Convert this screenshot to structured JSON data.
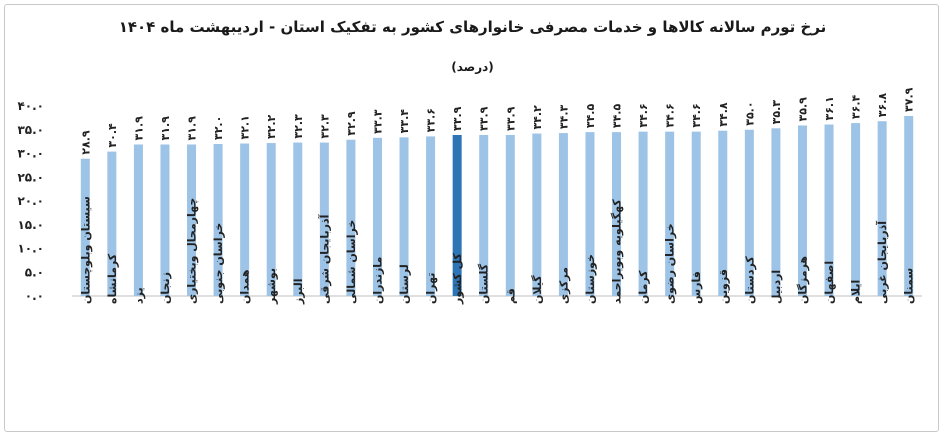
{
  "chart_data": {
    "type": "bar",
    "title": "نرخ تورم سالانه کالاها و خدمات مصرفی خانوارهای کشور به تفکیک استان - اردیبهشت ماه ۱۴۰۴",
    "subtitle": "(درصد)",
    "xlabel": "",
    "ylabel": "",
    "ylim": [
      0,
      40
    ],
    "yticks": [
      "۰.۰",
      "۵.۰",
      "۱۰.۰",
      "۱۵.۰",
      "۲۰.۰",
      "۲۵.۰",
      "۳۰.۰",
      "۳۵.۰",
      "۴۰.۰"
    ],
    "ytick_values": [
      0,
      5,
      10,
      15,
      20,
      25,
      30,
      35,
      40
    ],
    "grid": false,
    "colors": {
      "bar": "#9dc3e6",
      "highlight": "#2e75b6"
    },
    "highlight_category": "کل کشور",
    "categories": [
      "سیستان وبلوچستان",
      "کرمانشاه",
      "یزد",
      "زنجان",
      "چهارمحال وبختیاری",
      "خراسان جنوبی",
      "همدان",
      "بوشهر",
      "البرز",
      "آذربایجان شرقی",
      "خراسان شمالی",
      "مازندران",
      "لرستان",
      "تهران",
      "کل کشور",
      "گلستان",
      "قم",
      "گیلان",
      "مرکزی",
      "خوزستان",
      "کهگیلویه وبویراحمد",
      "کرمان",
      "خراسان رضوی",
      "فارس",
      "قزوین",
      "کردستان",
      "اردبیل",
      "هرمزگان",
      "اصفهان",
      "ایلام",
      "آذربایجان غربی",
      "سمنان"
    ],
    "values": [
      28.9,
      30.4,
      31.9,
      31.9,
      31.9,
      32.0,
      32.1,
      32.2,
      32.3,
      32.3,
      32.9,
      33.3,
      33.4,
      33.6,
      33.9,
      33.9,
      33.9,
      34.2,
      34.3,
      34.5,
      34.5,
      34.6,
      34.6,
      34.6,
      34.8,
      35.0,
      35.3,
      35.9,
      36.1,
      36.4,
      36.8,
      37.9
    ],
    "value_labels": [
      "۲۸.۹",
      "۳۰.۴",
      "۳۱.۹",
      "۳۱.۹",
      "۳۱.۹",
      "۳۲.۰",
      "۳۲.۱",
      "۳۲.۲",
      "۳۲.۳",
      "۳۲.۳",
      "۳۲.۹",
      "۳۳.۳",
      "۳۳.۴",
      "۳۳.۶",
      "۳۳.۹",
      "۳۳.۹",
      "۳۳.۹",
      "۳۴.۲",
      "۳۴.۳",
      "۳۴.۵",
      "۳۴.۵",
      "۳۴.۶",
      "۳۴.۶",
      "۳۴.۶",
      "۳۴.۸",
      "۳۵.۰",
      "۳۵.۳",
      "۳۵.۹",
      "۳۶.۱",
      "۳۶.۴",
      "۳۶.۸",
      "۳۷.۹"
    ]
  }
}
